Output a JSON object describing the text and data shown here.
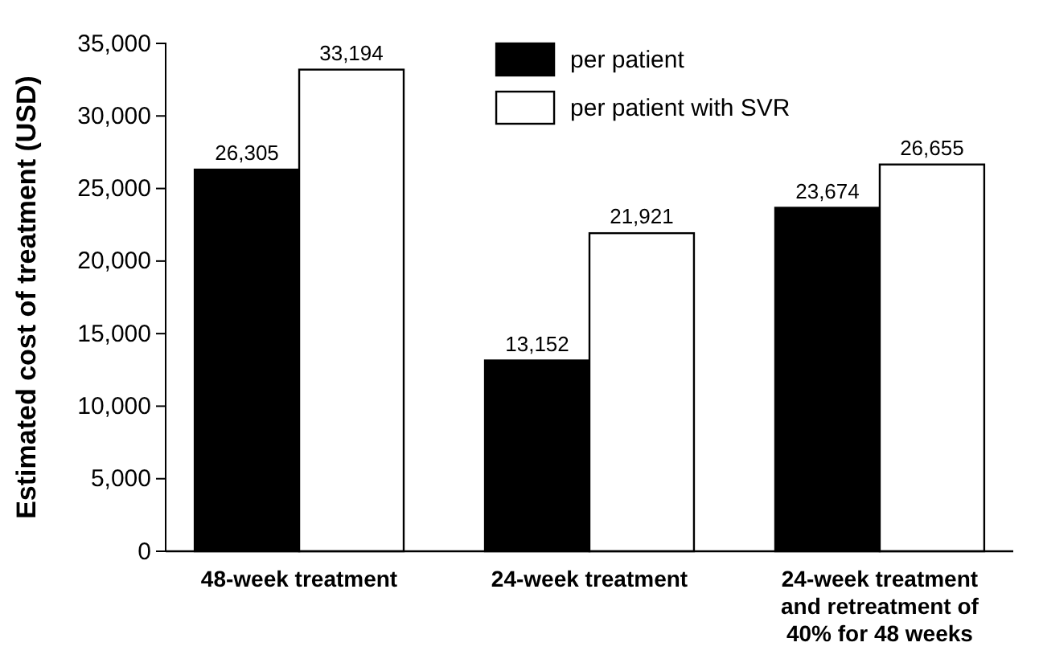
{
  "chart_data": {
    "type": "bar",
    "ylabel": "Estimated cost of treatment (USD)",
    "categories": [
      "48-week treatment",
      "24-week treatment",
      "24-week treatment and retreatment of 40% for 48 weeks"
    ],
    "series": [
      {
        "name": "per patient",
        "color": "#000000",
        "values": [
          26305,
          13152,
          23674
        ],
        "value_labels": [
          "26,305",
          "13,152",
          "23,674"
        ]
      },
      {
        "name": "per patient with SVR",
        "color": "#ffffff",
        "values": [
          33194,
          21921,
          26655
        ],
        "value_labels": [
          "33,194",
          "21,921",
          "26,655"
        ]
      }
    ],
    "ylim": [
      0,
      35000
    ],
    "yticks": [
      {
        "value": 0,
        "label": "0"
      },
      {
        "value": 5000,
        "label": "5,000"
      },
      {
        "value": 10000,
        "label": "10,000"
      },
      {
        "value": 15000,
        "label": "15,000"
      },
      {
        "value": 20000,
        "label": "20,000"
      },
      {
        "value": 25000,
        "label": "25,000"
      },
      {
        "value": 30000,
        "label": "30,000"
      },
      {
        "value": 35000,
        "label": "35,000"
      }
    ],
    "legend": "top",
    "grid": false
  }
}
